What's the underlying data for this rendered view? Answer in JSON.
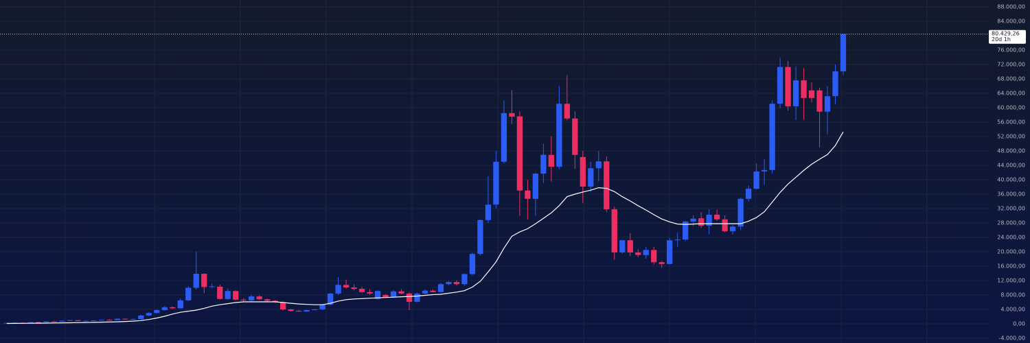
{
  "chart_data": {
    "type": "candlestick",
    "colors": {
      "up": "#2b5cf5",
      "down": "#ec2e63"
    },
    "candles": {
      "open": [
        100,
        250,
        300,
        260,
        450,
        420,
        650,
        600,
        850,
        1000,
        750,
        850,
        950,
        1100,
        1050,
        1400,
        1250,
        1300,
        2300,
        3000,
        3800,
        4600,
        4300,
        6500,
        10000,
        13900,
        10200,
        10300,
        6900,
        9100,
        6700,
        6500,
        7600,
        6800,
        6400,
        6000,
        4000,
        3600,
        3400,
        3800,
        4000,
        5300,
        8400,
        10800,
        10100,
        9700,
        8800,
        6900,
        8000,
        7400,
        9000,
        8400,
        6100,
        8400,
        9200,
        8800,
        11000,
        11600,
        11000,
        13800,
        19400,
        28800,
        33100,
        45000,
        58500,
        57600,
        37000,
        34700,
        41700,
        46900,
        43600,
        61100,
        57000,
        46300,
        38100,
        43200,
        45100,
        31800,
        19800,
        23200,
        19800,
        19100,
        20500,
        17100,
        16600,
        23200,
        23400,
        28400,
        29300,
        27200,
        30300,
        29000,
        25700,
        27000,
        34700,
        37500,
        42300,
        42700,
        61100,
        71300,
        60400,
        67600,
        64800,
        64800,
        58900,
        63200,
        70100
      ],
      "high": [
        300,
        400,
        350,
        500,
        600,
        700,
        800,
        900,
        1100,
        1050,
        900,
        1000,
        1200,
        1300,
        1500,
        1500,
        1500,
        2500,
        3200,
        4000,
        4900,
        4800,
        7000,
        10500,
        20000,
        14000,
        11200,
        10900,
        9800,
        9300,
        7100,
        8000,
        7900,
        7000,
        6600,
        6200,
        4200,
        3800,
        3900,
        4100,
        5500,
        8600,
        13000,
        12300,
        11000,
        10200,
        9600,
        9300,
        8300,
        9300,
        9600,
        8700,
        8600,
        9500,
        9500,
        11300,
        11900,
        12100,
        14000,
        19700,
        29000,
        41000,
        48000,
        62000,
        64900,
        59000,
        40000,
        42000,
        50000,
        52000,
        66000,
        69000,
        59000,
        48000,
        45000,
        48000,
        46500,
        32500,
        23300,
        25200,
        20700,
        21300,
        21400,
        17400,
        23800,
        25300,
        28600,
        30200,
        31000,
        31800,
        31700,
        30100,
        27500,
        35000,
        38400,
        44500,
        45700,
        62000,
        73800,
        73000,
        71500,
        71000,
        67000,
        65500,
        66000,
        72000,
        80429.26
      ],
      "low": [
        80,
        200,
        220,
        240,
        400,
        400,
        550,
        580,
        800,
        700,
        700,
        820,
        900,
        1000,
        1000,
        1200,
        1150,
        1200,
        2100,
        2900,
        3600,
        4100,
        4200,
        6300,
        9500,
        8500,
        9800,
        6700,
        6600,
        6500,
        6200,
        6300,
        6600,
        6200,
        5800,
        3700,
        3400,
        3300,
        3300,
        3700,
        3800,
        5100,
        8000,
        9800,
        9300,
        8600,
        8000,
        6700,
        7200,
        7200,
        8200,
        3800,
        6000,
        8200,
        8700,
        8600,
        10700,
        10600,
        10600,
        13500,
        19000,
        28000,
        32000,
        44500,
        55500,
        30000,
        29000,
        30000,
        39000,
        39500,
        42900,
        56500,
        43000,
        33500,
        36500,
        39500,
        31000,
        17800,
        19500,
        18800,
        18500,
        18100,
        16500,
        15600,
        16500,
        21400,
        23000,
        27100,
        26600,
        24800,
        28600,
        25400,
        24800,
        26000,
        34000,
        37300,
        38600,
        41700,
        59800,
        59200,
        56600,
        56700,
        61500,
        49000,
        52600,
        61000,
        69000
      ],
      "close": [
        250,
        300,
        260,
        450,
        420,
        650,
        600,
        850,
        1000,
        750,
        850,
        950,
        1100,
        1050,
        1400,
        1250,
        1300,
        2300,
        3000,
        3800,
        4600,
        4300,
        6500,
        10000,
        13900,
        10200,
        10400,
        6900,
        9100,
        6700,
        6500,
        7600,
        6800,
        6400,
        6000,
        4000,
        3600,
        3400,
        3800,
        4000,
        5300,
        8400,
        10800,
        10100,
        9700,
        8800,
        8400,
        9100,
        7400,
        9000,
        8400,
        6100,
        8400,
        9200,
        8800,
        11000,
        11600,
        11000,
        13800,
        19400,
        28800,
        33100,
        45000,
        58500,
        57500,
        37000,
        34700,
        41700,
        46900,
        43600,
        61100,
        57000,
        46900,
        38100,
        43200,
        45100,
        31800,
        19800,
        23200,
        19800,
        19100,
        20500,
        17100,
        16600,
        23200,
        23400,
        28400,
        29200,
        27200,
        30300,
        29000,
        25700,
        27000,
        34700,
        37500,
        42300,
        42700,
        61100,
        71300,
        60400,
        67600,
        62700,
        62700,
        58900,
        63200,
        70100,
        80429.26
      ]
    },
    "moving_average": {
      "color": "#ffffff",
      "values": [
        100,
        120,
        140,
        160,
        180,
        200,
        230,
        260,
        290,
        320,
        360,
        400,
        450,
        500,
        560,
        640,
        750,
        900,
        1200,
        1600,
        2100,
        2700,
        3200,
        3500,
        3800,
        4300,
        4900,
        5300,
        5600,
        5900,
        6100,
        6100,
        6100,
        6100,
        6100,
        5900,
        5700,
        5500,
        5400,
        5300,
        5300,
        5700,
        6300,
        6700,
        6900,
        7000,
        7100,
        7200,
        7300,
        7400,
        7500,
        7600,
        7700,
        7900,
        8100,
        8200,
        8500,
        8800,
        9200,
        10200,
        11800,
        14400,
        17200,
        21000,
        24300,
        25500,
        26400,
        27800,
        29300,
        30800,
        32800,
        35300,
        36000,
        36600,
        37100,
        37800,
        37600,
        36700,
        35300,
        34100,
        32800,
        31600,
        30300,
        29100,
        28300,
        27700,
        27600,
        27700,
        27800,
        27800,
        27800,
        27800,
        27800,
        27800,
        28500,
        29500,
        31100,
        33800,
        36500,
        38800,
        40700,
        42600,
        44300,
        45700,
        47000,
        49500,
        53300
      ]
    },
    "ylim": [
      -5333,
      89905
    ],
    "yticks": [
      {
        "value": -4000,
        "label": "-4.000,00"
      },
      {
        "value": 0,
        "label": "0,00"
      },
      {
        "value": 4000,
        "label": "4.000,00"
      },
      {
        "value": 8000,
        "label": "8.000,00"
      },
      {
        "value": 12000,
        "label": "12.000,00"
      },
      {
        "value": 16000,
        "label": "16.000,00"
      },
      {
        "value": 20000,
        "label": "20.000,00"
      },
      {
        "value": 24000,
        "label": "24.000,00"
      },
      {
        "value": 28000,
        "label": "28.000,00"
      },
      {
        "value": 32000,
        "label": "32.000,00"
      },
      {
        "value": 36000,
        "label": "36.000,00"
      },
      {
        "value": 40000,
        "label": "40.000,00"
      },
      {
        "value": 44000,
        "label": "44.000,00"
      },
      {
        "value": 48000,
        "label": "48.000,00"
      },
      {
        "value": 52000,
        "label": "52.000,00"
      },
      {
        "value": 56000,
        "label": "56.000,00"
      },
      {
        "value": 60000,
        "label": "60.000,00"
      },
      {
        "value": 64000,
        "label": "64.000,00"
      },
      {
        "value": 68000,
        "label": "68.000,00"
      },
      {
        "value": 72000,
        "label": "72.000,00"
      },
      {
        "value": 76000,
        "label": "76.000,00"
      },
      {
        "value": 84000,
        "label": "84.000,00"
      },
      {
        "value": 88000,
        "label": "88.000,00"
      }
    ],
    "price_line": {
      "value": 80429.26,
      "label": "80.429,26"
    },
    "countdown": "20d 1h",
    "grid": true
  }
}
